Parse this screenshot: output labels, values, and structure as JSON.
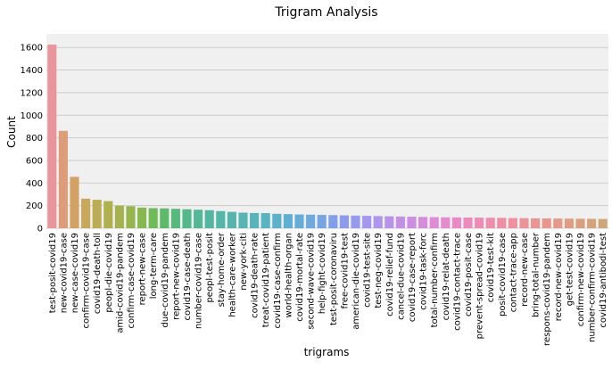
{
  "chart_data": {
    "type": "bar",
    "title": "Trigram Analysis",
    "xlabel": "trigrams",
    "ylabel": "Count",
    "ylim": [
      0,
      1720
    ],
    "yticks": [
      0,
      200,
      400,
      600,
      800,
      1000,
      1200,
      1400,
      1600
    ],
    "grid": "horizontal",
    "categories": [
      "test-posit-covid19",
      "new-covid19-case",
      "new-case-covid19",
      "confirm-covid19-case",
      "covid19-death-toll",
      "peopl-die-covid19",
      "amid-covid19-pandem",
      "confirm-case-covid19",
      "report-new-case",
      "long-term-care",
      "due-covid19-pandem",
      "report-new-covid19",
      "covid19-case-death",
      "number-covid19-case",
      "peopl-test-posit",
      "stay-home-order",
      "health-care-worker",
      "new-york-citi",
      "covid19-death-rate",
      "treat-covid19-patient",
      "covid19-case-confirm",
      "world-health-organ",
      "covid19-mortal-rate",
      "second-wave-covid19",
      "help-fight-covid19",
      "test-posit-coronaviru",
      "free-covid19-test",
      "american-die-covid19",
      "covid19-test-site",
      "test-neg-covid19",
      "covid19-relief-fund",
      "cancel-due-covid19",
      "covid19-case-report",
      "covid19-task-forc",
      "total-number-confirm",
      "covid19-relat-death",
      "covid19-contact-trace",
      "covid19-posit-case",
      "prevent-spread-covid19",
      "covid19-test-kit",
      "posit-covid19-case",
      "contact-trace-app",
      "record-new-case",
      "bring-total-number",
      "respons-covid19-pandem",
      "record-new-covid19",
      "get-test-covid19",
      "confirm-new-covid19",
      "number-confirm-covid19",
      "covid19-antibodi-test"
    ],
    "values": [
      1625,
      862,
      455,
      262,
      252,
      240,
      200,
      195,
      183,
      178,
      176,
      172,
      168,
      164,
      160,
      152,
      145,
      138,
      135,
      134,
      128,
      125,
      122,
      120,
      118,
      116,
      114,
      112,
      110,
      108,
      106,
      104,
      102,
      100,
      98,
      97,
      96,
      95,
      94,
      93,
      92,
      90,
      89,
      88,
      87,
      86,
      85,
      84,
      83,
      82
    ],
    "colors": [
      "#e8959b",
      "#dd9d79",
      "#d4a164",
      "#c9a85b",
      "#bdac56",
      "#b1b050",
      "#a5b24d",
      "#97b54d",
      "#86b84f",
      "#6fbb58",
      "#5dba6b",
      "#57b97e",
      "#55b88b",
      "#54b795",
      "#54b69e",
      "#54b6a6",
      "#55b5ad",
      "#56b4b4",
      "#57b4bb",
      "#58b3c2",
      "#5bb1ca",
      "#60afd2",
      "#66acd9",
      "#6ea9df",
      "#77a5e4",
      "#81a0e8",
      "#8c9beb",
      "#969aed",
      "#a398ed",
      "#ae96ec",
      "#b893ea",
      "#c390e6",
      "#cd8de1",
      "#d78bdb",
      "#df8ad4",
      "#e58acd",
      "#e98ac5",
      "#ec8bbd",
      "#ee8cb5",
      "#ef8dad",
      "#ef8fa6",
      "#ee919f",
      "#ec9399",
      "#ea9593",
      "#e8978d",
      "#e49a88",
      "#df9d84",
      "#d9a080",
      "#d3a37c",
      "#cda679"
    ]
  }
}
